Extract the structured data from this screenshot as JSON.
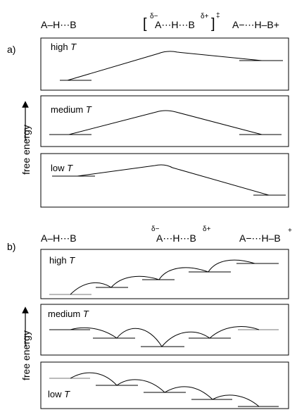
{
  "part_a": {
    "label": "a)",
    "header": {
      "reactant": "A–H⋯B",
      "ts_open": "[",
      "ts_delta_minus": "δ−",
      "ts_body": "A⋯H⋯B",
      "ts_delta_plus": "δ+",
      "ts_close": "]",
      "ts_double_dagger": "‡",
      "product": "A−⋯H–B+"
    },
    "panels": [
      {
        "prefix": "high ",
        "var": "T"
      },
      {
        "prefix": "medium ",
        "var": "T"
      },
      {
        "prefix": "low ",
        "var": "T"
      }
    ]
  },
  "part_b": {
    "label": "b)",
    "header": {
      "reactant": "A–H⋯B",
      "mid_delta_minus": "δ−",
      "mid_body": "A⋯H⋯B",
      "mid_delta_plus": "δ+",
      "product_body": "A−⋯H–B",
      "product_plus": "+"
    },
    "panels": [
      {
        "prefix": "high ",
        "var": "T"
      },
      {
        "prefix": "medium ",
        "var": "T"
      },
      {
        "prefix": "low ",
        "var": "T"
      }
    ]
  },
  "axis_label": "free energy"
}
